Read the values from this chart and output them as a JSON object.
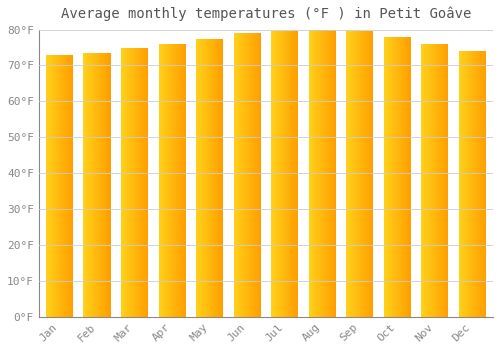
{
  "months": [
    "Jan",
    "Feb",
    "Mar",
    "Apr",
    "May",
    "Jun",
    "Jul",
    "Aug",
    "Sep",
    "Oct",
    "Nov",
    "Dec"
  ],
  "values": [
    73,
    73.5,
    75,
    76,
    77.5,
    79,
    79.5,
    80,
    79.5,
    78,
    76,
    74
  ],
  "title": "Average monthly temperatures (°F ) in Petit Goâve",
  "ylim": [
    0,
    80
  ],
  "yticks": [
    0,
    10,
    20,
    30,
    40,
    50,
    60,
    70,
    80
  ],
  "ytick_labels": [
    "0°F",
    "10°F",
    "20°F",
    "30°F",
    "40°F",
    "50°F",
    "60°F",
    "70°F",
    "80°F"
  ],
  "background_color": "#FFFFFF",
  "grid_color": "#CCCCCC",
  "title_fontsize": 10,
  "tick_fontsize": 8,
  "bar_width": 0.72,
  "bar_color_left": "#FFD040",
  "bar_color_right": "#FFA000",
  "n_grad": 80
}
